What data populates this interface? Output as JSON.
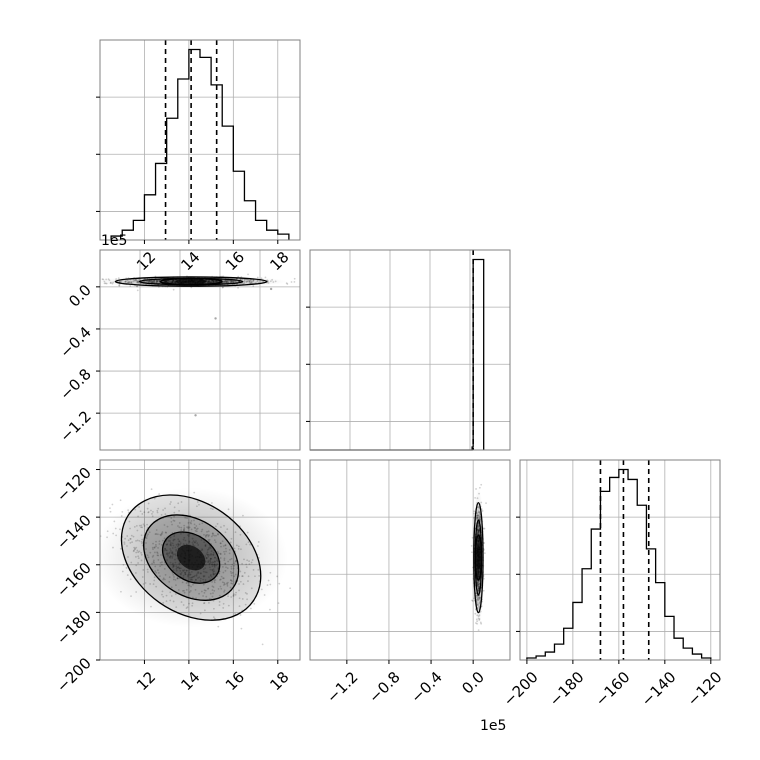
{
  "chart_data": {
    "type": "corner",
    "colors": {
      "line": "#000000",
      "grid": "#b0b0b0",
      "frame": "#808080",
      "quantile": "#000000"
    },
    "panels": [
      {
        "id": "hist-param1",
        "type": "histogram",
        "grid": true,
        "x_ticks": [
          "12",
          "14",
          "16",
          "18"
        ],
        "y_ticks": [],
        "xlim": [
          10,
          19
        ],
        "bin_edges": [
          10.5,
          11.0,
          11.5,
          12.0,
          12.5,
          13.0,
          13.5,
          14.0,
          14.5,
          15.0,
          15.5,
          16.0,
          16.5,
          17.0,
          17.5,
          18.0,
          18.5
        ],
        "counts": [
          0.02,
          0.05,
          0.1,
          0.23,
          0.39,
          0.62,
          0.82,
          0.97,
          0.93,
          0.79,
          0.58,
          0.35,
          0.2,
          0.1,
          0.05,
          0.03
        ],
        "quantiles": [
          12.95,
          14.1,
          15.25
        ]
      },
      {
        "id": "scatter-param1-param2",
        "type": "density2d",
        "grid": true,
        "x_ticks": [],
        "y_ticks": [
          "−1.2",
          "−0.8",
          "−0.4",
          "0.0"
        ],
        "y_offset": "1e5",
        "xlim": [
          10,
          19
        ],
        "ylim": [
          -1.55,
          0.35
        ],
        "center": [
          14.1,
          0.05
        ],
        "spread": [
          1.55,
          0.02
        ],
        "outliers": [
          [
            14.3,
            -1.22
          ],
          [
            15.2,
            -0.3
          ],
          [
            17.7,
            -0.02
          ]
        ]
      },
      {
        "id": "hist-param2",
        "type": "histogram",
        "grid": true,
        "x_ticks": [],
        "y_ticks": [],
        "xlim": [
          -1.55,
          0.35
        ],
        "bin_edges": [
          -1.55,
          -0.01,
          0.0,
          0.1
        ],
        "counts": [
          0.0,
          0.015,
          0.98
        ],
        "quantiles": [
          0.0
        ]
      },
      {
        "id": "scatter-param1-param3",
        "type": "density2d",
        "grid": true,
        "x_ticks": [
          "12",
          "14",
          "16",
          "18"
        ],
        "y_ticks": [
          "−120",
          "−140",
          "−160",
          "−180",
          "−200"
        ],
        "xlim": [
          10,
          19
        ],
        "ylim": [
          -200,
          -116
        ],
        "center": [
          14.1,
          -157
        ],
        "spread": [
          1.55,
          10.5
        ]
      },
      {
        "id": "scatter-param2-param3",
        "type": "density2d",
        "grid": true,
        "x_ticks": [
          "−1.2",
          "−0.8",
          "−0.4",
          "0.0"
        ],
        "x_offset": "1e5",
        "y_ticks": [],
        "xlim": [
          -1.55,
          0.35
        ],
        "ylim": [
          -200,
          -116
        ],
        "center": [
          0.05,
          -157
        ],
        "spread": [
          0.02,
          10.5
        ]
      },
      {
        "id": "hist-param3",
        "type": "histogram",
        "grid": true,
        "x_ticks": [
          "−200",
          "−180",
          "−160",
          "−140",
          "−120"
        ],
        "y_ticks": [],
        "xlim": [
          -203,
          -116
        ],
        "bin_edges": [
          -200,
          -196,
          -192,
          -188,
          -184,
          -180,
          -176,
          -172,
          -168,
          -164,
          -160,
          -156,
          -152,
          -148,
          -144,
          -140,
          -136,
          -132,
          -128,
          -124,
          -120
        ],
        "counts": [
          0.01,
          0.02,
          0.04,
          0.08,
          0.16,
          0.29,
          0.46,
          0.66,
          0.85,
          0.92,
          0.96,
          0.91,
          0.78,
          0.56,
          0.39,
          0.22,
          0.11,
          0.06,
          0.03,
          0.01
        ],
        "quantiles": [
          -168,
          -158,
          -147
        ]
      }
    ]
  }
}
